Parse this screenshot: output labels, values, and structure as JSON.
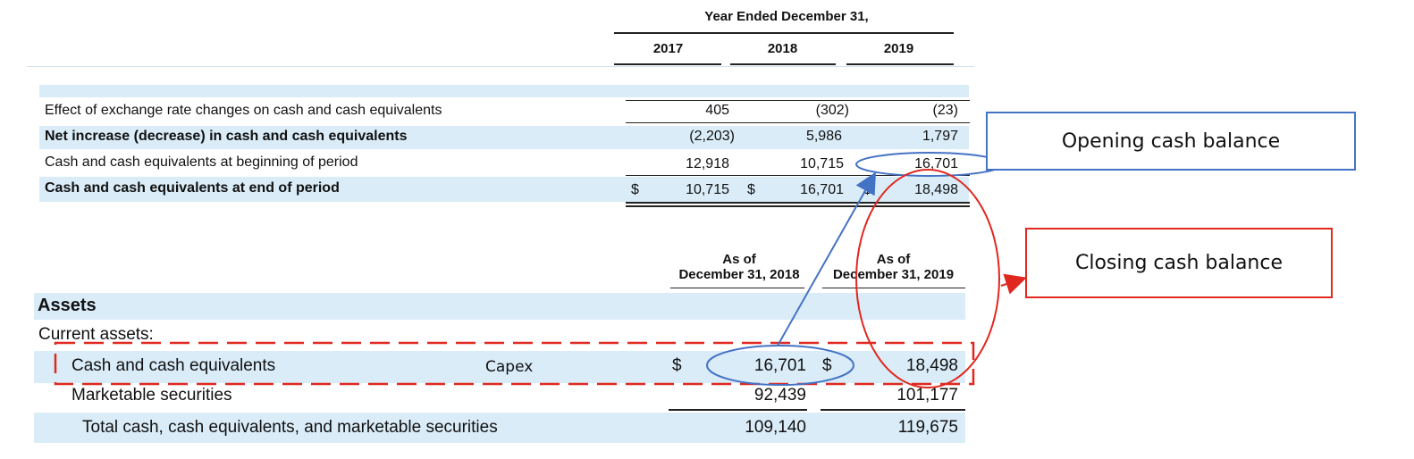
{
  "cash_flow": {
    "header": "Year Ended December 31,",
    "years": [
      "2017",
      "2018",
      "2019"
    ],
    "rows": [
      {
        "label": "Effect of exchange rate changes on cash and cash equivalents",
        "bold": false,
        "values": [
          "405",
          "(302)",
          "(23)"
        ]
      },
      {
        "label": "Net increase (decrease) in cash and cash equivalents",
        "bold": true,
        "values": [
          "(2,203)",
          "5,986",
          "1,797"
        ]
      },
      {
        "label": "Cash and cash equivalents at beginning of period",
        "bold": false,
        "values": [
          "12,918",
          "10,715",
          "16,701"
        ]
      },
      {
        "label": "Cash and cash equivalents at end of period",
        "bold": true,
        "values": [
          "10,715",
          "16,701",
          "18,498"
        ]
      }
    ],
    "currency": "$"
  },
  "balance_sheet": {
    "col_headers": [
      {
        "line1": "As of",
        "line2": "December 31, 2018"
      },
      {
        "line1": "As of",
        "line2": "December 31, 2019"
      }
    ],
    "section": "Assets",
    "subsection": "Current assets:",
    "rows": [
      {
        "label": "Cash and cash equivalents",
        "values": [
          "16,701",
          "18,498"
        ]
      },
      {
        "label": "Marketable securities",
        "values": [
          "92,439",
          "101,177"
        ]
      },
      {
        "label": "Total cash, cash equivalents, and marketable securities",
        "values": [
          "109,140",
          "119,675"
        ]
      }
    ],
    "currency": "$",
    "overlay_text": "Capex"
  },
  "annotations": {
    "opening": "Opening cash balance",
    "closing": "Closing cash balance",
    "blue": "#4472c4",
    "red": "#e0281f"
  }
}
